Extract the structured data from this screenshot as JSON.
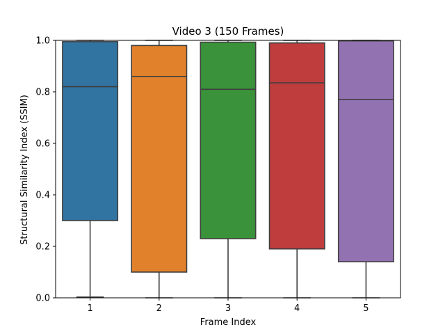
{
  "chart_data": {
    "type": "box",
    "title": "Video 3 (150 Frames)",
    "xlabel": "Frame Index",
    "ylabel": "Structural Similarity Index (SSIM)",
    "categories": [
      "1",
      "2",
      "3",
      "4",
      "5"
    ],
    "ylim": [
      0.0,
      1.0
    ],
    "yticks": [
      0.0,
      0.2,
      0.4,
      0.6,
      0.8,
      1.0
    ],
    "ytick_labels": [
      "0.0",
      "0.2",
      "0.4",
      "0.6",
      "0.8",
      "1.0"
    ],
    "grid": false,
    "boxes": [
      {
        "category": "1",
        "whisker_low": 0.003,
        "q1": 0.3,
        "median": 0.82,
        "q3": 0.995,
        "whisker_high": 1.0
      },
      {
        "category": "2",
        "whisker_low": 0.0,
        "q1": 0.1,
        "median": 0.86,
        "q3": 0.98,
        "whisker_high": 1.0
      },
      {
        "category": "3",
        "whisker_low": 0.0,
        "q1": 0.23,
        "median": 0.81,
        "q3": 0.993,
        "whisker_high": 1.0
      },
      {
        "category": "4",
        "whisker_low": 0.0,
        "q1": 0.19,
        "median": 0.835,
        "q3": 0.99,
        "whisker_high": 1.0
      },
      {
        "category": "5",
        "whisker_low": 0.0,
        "q1": 0.14,
        "median": 0.77,
        "q3": 0.998,
        "whisker_high": 1.0
      }
    ],
    "colors": [
      "#3274a1",
      "#e1812c",
      "#3a923a",
      "#c03d3e",
      "#9372b2"
    ],
    "edge_color": "#3f3f3f"
  }
}
